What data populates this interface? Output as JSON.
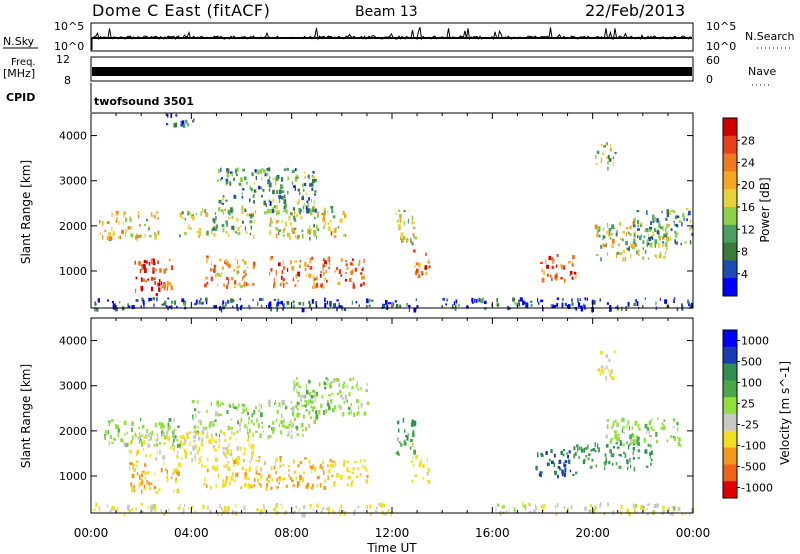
{
  "header": {
    "station": "Dome C East (fitACF)",
    "beam": "Beam 13",
    "date": "22/Feb/2013"
  },
  "status_panels": {
    "nsky_label": "N.Sky",
    "nsky_ticks": [
      "10^5",
      "10^0"
    ],
    "nsearch_label": "N.Search",
    "nsearch_right_ticks": [
      "10^5",
      "10^0"
    ],
    "freq_label_line1": "Freq.",
    "freq_label_line2": "[MHz]",
    "freq_ticks": [
      "12",
      "8"
    ],
    "nave_label": "Nave",
    "nave_ticks": [
      "60",
      "0"
    ],
    "cpid_label": "CPID",
    "cpid_value": "twofsound 3501"
  },
  "colors": {
    "power_scale": [
      "#0000ff",
      "#1c4bb2",
      "#3a7a3a",
      "#4aa060",
      "#8fd24a",
      "#e7d23a",
      "#f5a623",
      "#f07a1e",
      "#e8401a",
      "#d00000"
    ],
    "velocity_scale": [
      "#0000ff",
      "#1a3cb0",
      "#2f8f4e",
      "#4aa74a",
      "#8fe03a",
      "#c8c8c4",
      "#f0e020",
      "#f39a1e",
      "#f06418",
      "#e00000"
    ]
  },
  "chart_data": [
    {
      "type": "heatmap",
      "name": "power",
      "xlabel": "Time UT",
      "ylabel": "Slant Range [km]",
      "x_ticks": [
        "00:00",
        "04:00",
        "08:00",
        "12:00",
        "16:00",
        "20:00",
        "00:00"
      ],
      "y_ticks": [
        "1000",
        "2000",
        "3000",
        "4000"
      ],
      "y_tick_values": [
        1000,
        2000,
        3000,
        4000
      ],
      "xlim_hours": [
        0,
        24
      ],
      "ylim_km": [
        180,
        4500
      ],
      "colorbar_label": "Power [dB]",
      "colorbar_ticks": [
        "4",
        "8",
        "12",
        "16",
        "20",
        "24",
        "28"
      ],
      "blobs": [
        {
          "t": 2.4,
          "r": 900,
          "dt": 0.8,
          "dr": 400,
          "v": 28
        },
        {
          "t": 5.5,
          "r": 1000,
          "dt": 1.0,
          "dr": 350,
          "v": 22
        },
        {
          "t": 8.3,
          "r": 1000,
          "dt": 1.2,
          "dr": 350,
          "v": 24
        },
        {
          "t": 10.3,
          "r": 1000,
          "dt": 0.6,
          "dr": 300,
          "v": 26
        },
        {
          "t": 1.5,
          "r": 2050,
          "dt": 1.2,
          "dr": 300,
          "v": 18
        },
        {
          "t": 5.0,
          "r": 2100,
          "dt": 1.5,
          "dr": 300,
          "v": 14
        },
        {
          "t": 8.6,
          "r": 2100,
          "dt": 1.5,
          "dr": 350,
          "v": 16
        },
        {
          "t": 7.0,
          "r": 2800,
          "dt": 2.0,
          "dr": 500,
          "v": 10
        },
        {
          "t": 12.5,
          "r": 2000,
          "dt": 0.4,
          "dr": 400,
          "v": 18
        },
        {
          "t": 13.1,
          "r": 1200,
          "dt": 0.4,
          "dr": 300,
          "v": 24
        },
        {
          "t": 18.6,
          "r": 1100,
          "dt": 0.7,
          "dr": 300,
          "v": 24
        },
        {
          "t": 21.5,
          "r": 1700,
          "dt": 1.5,
          "dr": 400,
          "v": 16
        },
        {
          "t": 22.8,
          "r": 2000,
          "dt": 1.2,
          "dr": 400,
          "v": 10
        },
        {
          "t": 20.5,
          "r": 3600,
          "dt": 0.4,
          "dr": 300,
          "v": 14
        },
        {
          "t": 3.5,
          "r": 4400,
          "dt": 0.6,
          "dr": 150,
          "v": 6
        },
        {
          "t": 3.0,
          "r": 300,
          "dt": 10.0,
          "dr": 120,
          "v": 4
        },
        {
          "t": 19.0,
          "r": 300,
          "dt": 5.0,
          "dr": 120,
          "v": 4
        }
      ]
    },
    {
      "type": "heatmap",
      "name": "velocity",
      "xlabel": "Time UT",
      "ylabel": "Slant Range [km]",
      "x_ticks": [
        "00:00",
        "04:00",
        "08:00",
        "12:00",
        "16:00",
        "20:00",
        "00:00"
      ],
      "y_ticks": [
        "1000",
        "2000",
        "3000",
        "4000"
      ],
      "y_tick_values": [
        1000,
        2000,
        3000,
        4000
      ],
      "xlim_hours": [
        0,
        24
      ],
      "ylim_km": [
        180,
        4500
      ],
      "colorbar_label": "Velocity [m s^-1]",
      "colorbar_ticks": [
        "1000",
        "500",
        "100",
        "25",
        "-25",
        "-100",
        "-500",
        "-1000"
      ],
      "blobs": [
        {
          "t": 2.5,
          "r": 1000,
          "dt": 1.0,
          "dr": 350,
          "v": -300
        },
        {
          "t": 5.5,
          "r": 1100,
          "dt": 1.3,
          "dr": 350,
          "v": -250
        },
        {
          "t": 8.3,
          "r": 1100,
          "dt": 1.4,
          "dr": 350,
          "v": -300
        },
        {
          "t": 10.3,
          "r": 1100,
          "dt": 0.7,
          "dr": 300,
          "v": -200
        },
        {
          "t": 4.0,
          "r": 1700,
          "dt": 2.5,
          "dr": 300,
          "v": -80
        },
        {
          "t": 2.0,
          "r": 2000,
          "dt": 1.5,
          "dr": 300,
          "v": 0
        },
        {
          "t": 6.5,
          "r": 2300,
          "dt": 2.5,
          "dr": 400,
          "v": 0
        },
        {
          "t": 9.5,
          "r": 2800,
          "dt": 1.5,
          "dr": 400,
          "v": 0
        },
        {
          "t": 12.5,
          "r": 1900,
          "dt": 0.4,
          "dr": 400,
          "v": 60
        },
        {
          "t": 13.1,
          "r": 1200,
          "dt": 0.4,
          "dr": 300,
          "v": -100
        },
        {
          "t": 18.5,
          "r": 1300,
          "dt": 0.8,
          "dr": 300,
          "v": 300
        },
        {
          "t": 20.8,
          "r": 1500,
          "dt": 1.6,
          "dr": 300,
          "v": 80
        },
        {
          "t": 22.0,
          "r": 2000,
          "dt": 1.5,
          "dr": 300,
          "v": 0
        },
        {
          "t": 20.5,
          "r": 3500,
          "dt": 0.4,
          "dr": 300,
          "v": -60
        },
        {
          "t": 4.0,
          "r": 300,
          "dt": 8.0,
          "dr": 120,
          "v": -60
        },
        {
          "t": 20.0,
          "r": 300,
          "dt": 4.0,
          "dr": 120,
          "v": -40
        }
      ]
    }
  ]
}
